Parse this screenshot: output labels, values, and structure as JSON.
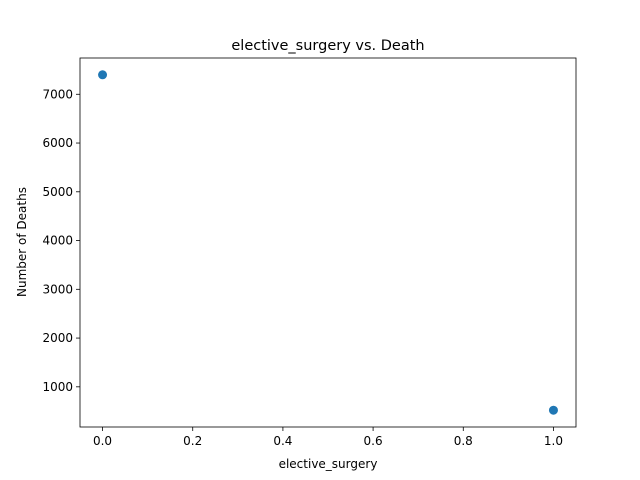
{
  "chart_data": {
    "type": "scatter",
    "title": "elective_surgery vs. Death",
    "xlabel": "elective_surgery",
    "ylabel": "Number of Deaths",
    "x": [
      0.0,
      1.0
    ],
    "y": [
      7400,
      520
    ],
    "xlim": [
      -0.05,
      1.05
    ],
    "ylim": [
      176,
      7744
    ],
    "xticks": [
      0.0,
      0.2,
      0.4,
      0.6,
      0.8,
      1.0
    ],
    "xtick_labels": [
      "0.0",
      "0.2",
      "0.4",
      "0.6",
      "0.8",
      "1.0"
    ],
    "yticks": [
      1000,
      2000,
      3000,
      4000,
      5000,
      6000,
      7000
    ],
    "ytick_labels": [
      "1000",
      "2000",
      "3000",
      "4000",
      "5000",
      "6000",
      "7000"
    ],
    "grid": false,
    "marker_color": "#1f77b4"
  }
}
